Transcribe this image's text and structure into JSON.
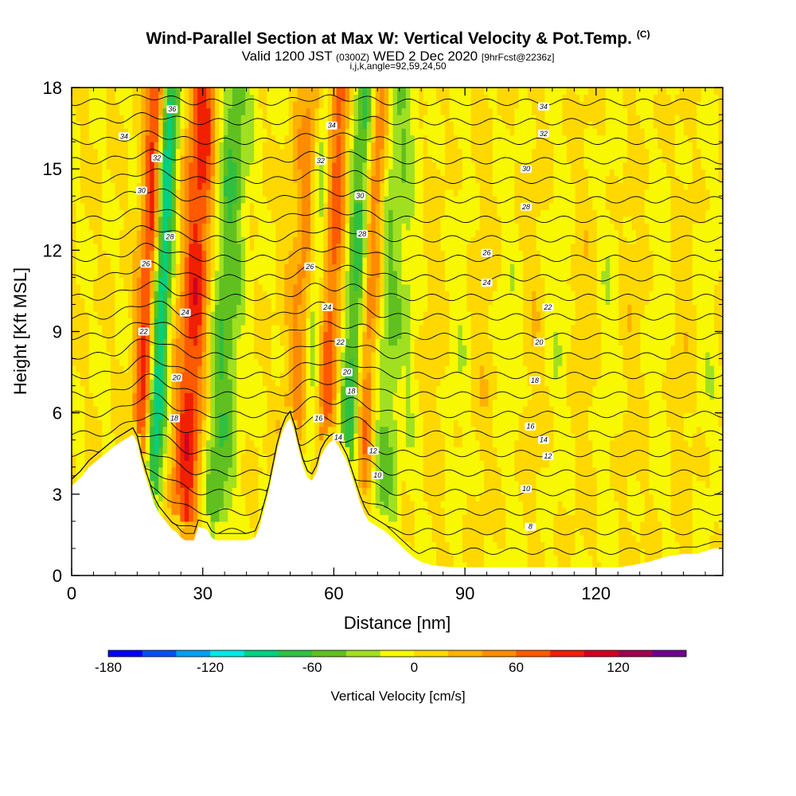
{
  "header": {
    "title": "Wind-Parallel Section at Max W: Vertical Velocity & Pot.Temp.",
    "title_tag": "(C)",
    "subtitle_pre": "Valid 1200 JST",
    "subtitle_z": "(0300Z)",
    "subtitle_mid": "WED 2 Dec 2020",
    "subtitle_fcst": "[9hrFcst@2236z]",
    "subtitle2": "i,j,k,angle=92,59,24,50"
  },
  "chart_data": {
    "type": "heatmap",
    "xlabel": "Distance [nm]",
    "ylabel": "Height [Kft MSL]",
    "xlim": [
      0,
      149
    ],
    "ylim": [
      0,
      18
    ],
    "x_ticks": [
      "0",
      "30",
      "60",
      "90",
      "120"
    ],
    "y_ticks": [
      "0",
      "3",
      "6",
      "9",
      "12",
      "15",
      "18"
    ],
    "colorbar": {
      "title": "Vertical Velocity [cm/s]",
      "ticks": [
        "-180",
        "-120",
        "-60",
        "0",
        "60",
        "120"
      ],
      "range": [
        -180,
        160
      ],
      "step": 20,
      "colors": [
        "#0000ff",
        "#0050f0",
        "#00a0f0",
        "#00e8e8",
        "#00d080",
        "#30c040",
        "#60c020",
        "#a0e020",
        "#f8f800",
        "#ffd800",
        "#ffb000",
        "#ff8c00",
        "#ff5a00",
        "#f02000",
        "#d00020",
        "#a00050",
        "#700090"
      ]
    },
    "terrain_kft": [
      [
        0,
        3.3
      ],
      [
        2,
        3.6
      ],
      [
        4,
        4.0
      ],
      [
        7,
        4.4
      ],
      [
        10,
        4.8
      ],
      [
        12,
        5.0
      ],
      [
        14,
        5.2
      ],
      [
        15,
        4.9
      ],
      [
        16,
        4.2
      ],
      [
        17,
        3.6
      ],
      [
        18,
        3.1
      ],
      [
        19,
        2.6
      ],
      [
        20,
        2.3
      ],
      [
        21,
        2.1
      ],
      [
        22,
        1.9
      ],
      [
        23,
        1.7
      ],
      [
        24,
        1.6
      ],
      [
        25,
        1.4
      ],
      [
        26,
        1.3
      ],
      [
        28,
        1.3
      ],
      [
        29,
        1.8
      ],
      [
        31,
        1.7
      ],
      [
        32,
        1.4
      ],
      [
        33,
        1.3
      ],
      [
        36,
        1.3
      ],
      [
        40,
        1.3
      ],
      [
        42,
        1.4
      ],
      [
        43,
        1.8
      ],
      [
        44,
        2.4
      ],
      [
        45,
        3.0
      ],
      [
        46,
        3.8
      ],
      [
        47,
        4.6
      ],
      [
        48,
        5.2
      ],
      [
        49,
        5.6
      ],
      [
        50,
        5.8
      ],
      [
        51,
        5.3
      ],
      [
        52,
        4.6
      ],
      [
        53,
        4.0
      ],
      [
        54,
        3.6
      ],
      [
        55,
        3.5
      ],
      [
        56,
        3.8
      ],
      [
        57,
        4.4
      ],
      [
        58,
        4.7
      ],
      [
        59,
        4.9
      ],
      [
        60,
        5.0
      ],
      [
        61,
        4.8
      ],
      [
        62,
        4.5
      ],
      [
        63,
        4.2
      ],
      [
        64,
        3.7
      ],
      [
        65,
        3.2
      ],
      [
        66,
        2.7
      ],
      [
        67,
        2.3
      ],
      [
        68,
        2.0
      ],
      [
        70,
        1.8
      ],
      [
        72,
        1.6
      ],
      [
        74,
        1.3
      ],
      [
        76,
        1.0
      ],
      [
        78,
        0.7
      ],
      [
        80,
        0.5
      ],
      [
        82,
        0.4
      ],
      [
        84,
        0.35
      ],
      [
        88,
        0.3
      ],
      [
        95,
        0.3
      ],
      [
        100,
        0.3
      ],
      [
        110,
        0.3
      ],
      [
        120,
        0.3
      ],
      [
        125,
        0.3
      ],
      [
        127,
        0.35
      ],
      [
        129,
        0.4
      ],
      [
        132,
        0.5
      ],
      [
        136,
        0.7
      ],
      [
        140,
        0.8
      ],
      [
        143,
        0.8
      ],
      [
        145,
        0.9
      ],
      [
        147,
        1.0
      ],
      [
        149,
        1.0
      ]
    ],
    "updrafts": [
      {
        "x": 16.5,
        "peak_cms": 110
      },
      {
        "x": 27.0,
        "peak_cms": 90
      },
      {
        "x": 52.0,
        "peak_cms": 50
      },
      {
        "x": 57.5,
        "peak_cms": 90
      },
      {
        "x": 67.0,
        "peak_cms": 110
      }
    ],
    "downdrafts": [
      {
        "x": 19.0,
        "peak_cms": -120
      },
      {
        "x": 34.0,
        "peak_cms": -60
      },
      {
        "x": 55.0,
        "peak_cms": -100
      },
      {
        "x": 64.5,
        "peak_cms": -90
      },
      {
        "x": 72.0,
        "peak_cms": -40
      }
    ],
    "contour_labels": [
      {
        "text": "36",
        "x": 23.0,
        "y": 17.2
      },
      {
        "text": "34",
        "x": 12.0,
        "y": 16.2
      },
      {
        "text": "32",
        "x": 19.5,
        "y": 15.4
      },
      {
        "text": "30",
        "x": 16.0,
        "y": 14.2
      },
      {
        "text": "28",
        "x": 22.5,
        "y": 12.5
      },
      {
        "text": "26",
        "x": 17.0,
        "y": 11.5
      },
      {
        "text": "24",
        "x": 26.0,
        "y": 9.7
      },
      {
        "text": "22",
        "x": 16.5,
        "y": 9.0
      },
      {
        "text": "20",
        "x": 24.0,
        "y": 7.3
      },
      {
        "text": "18",
        "x": 23.5,
        "y": 5.8
      },
      {
        "text": "34",
        "x": 59.5,
        "y": 16.6
      },
      {
        "text": "32",
        "x": 57.0,
        "y": 15.3
      },
      {
        "text": "30",
        "x": 66.0,
        "y": 14.0
      },
      {
        "text": "28",
        "x": 66.5,
        "y": 12.6
      },
      {
        "text": "26",
        "x": 54.5,
        "y": 11.4
      },
      {
        "text": "24",
        "x": 58.5,
        "y": 9.9
      },
      {
        "text": "22",
        "x": 61.5,
        "y": 8.6
      },
      {
        "text": "20",
        "x": 63.0,
        "y": 7.5
      },
      {
        "text": "18",
        "x": 64.0,
        "y": 6.8
      },
      {
        "text": "16",
        "x": 56.5,
        "y": 5.8
      },
      {
        "text": "14",
        "x": 61.0,
        "y": 5.1
      },
      {
        "text": "12",
        "x": 69.0,
        "y": 4.6
      },
      {
        "text": "10",
        "x": 70.0,
        "y": 3.7
      },
      {
        "text": "34",
        "x": 108.0,
        "y": 17.3
      },
      {
        "text": "32",
        "x": 108.0,
        "y": 16.3
      },
      {
        "text": "30",
        "x": 104.0,
        "y": 15.0
      },
      {
        "text": "28",
        "x": 104.0,
        "y": 13.6
      },
      {
        "text": "26",
        "x": 95.0,
        "y": 11.9
      },
      {
        "text": "24",
        "x": 95.0,
        "y": 10.8
      },
      {
        "text": "22",
        "x": 109.0,
        "y": 9.9
      },
      {
        "text": "20",
        "x": 107.0,
        "y": 8.6
      },
      {
        "text": "18",
        "x": 106.0,
        "y": 7.2
      },
      {
        "text": "16",
        "x": 105.0,
        "y": 5.5
      },
      {
        "text": "14",
        "x": 108.0,
        "y": 5.0
      },
      {
        "text": "12",
        "x": 109.0,
        "y": 4.4
      },
      {
        "text": "10",
        "x": 104.0,
        "y": 3.2
      },
      {
        "text": "8",
        "x": 105.0,
        "y": 1.8
      }
    ]
  }
}
